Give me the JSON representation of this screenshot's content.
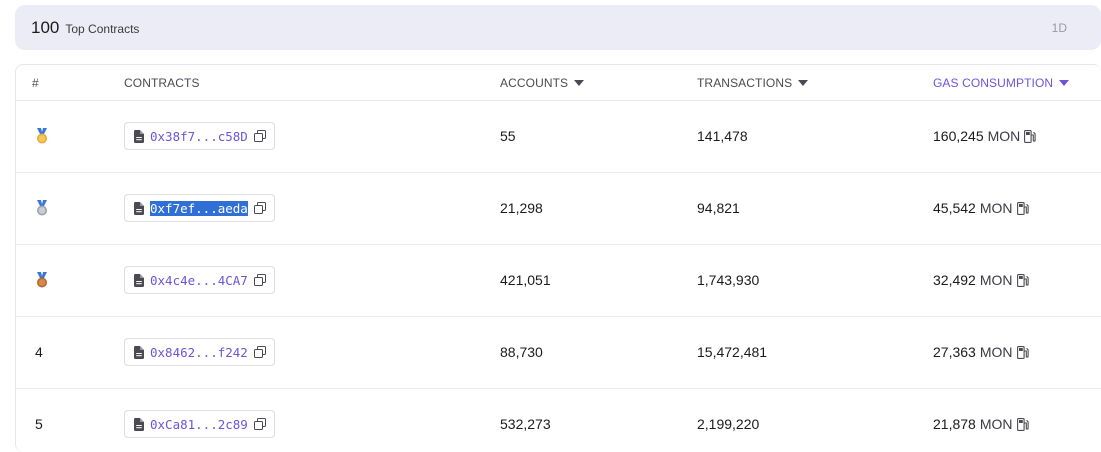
{
  "header": {
    "count": "100",
    "label": "Top Contracts",
    "timeframe": "1D"
  },
  "columns": {
    "rank": "#",
    "contracts": "CONTRACTS",
    "accounts": "ACCOUNTS",
    "transactions": "TRANSACTIONS",
    "gas": "GAS CONSUMPTION"
  },
  "accent_color": "#6e54d8",
  "rows": [
    {
      "rank": "1",
      "medal": "gold-medal-icon",
      "address": "0x38f7...c58D",
      "accounts": "55",
      "transactions": "141,478",
      "gas": "160,245",
      "unit": "MON"
    },
    {
      "rank": "2",
      "medal": "silver-medal-icon",
      "address": "0xf7ef...aeda",
      "accounts": "21,298",
      "transactions": "94,821",
      "gas": "45,542",
      "unit": "MON",
      "selected": true
    },
    {
      "rank": "3",
      "medal": "bronze-medal-icon",
      "address": "0x4c4e...4CA7",
      "accounts": "421,051",
      "transactions": "1,743,930",
      "gas": "32,492",
      "unit": "MON"
    },
    {
      "rank": "4",
      "address": "0x8462...f242",
      "accounts": "88,730",
      "transactions": "15,472,481",
      "gas": "27,363",
      "unit": "MON"
    },
    {
      "rank": "5",
      "address": "0xCa81...2c89",
      "accounts": "532,273",
      "transactions": "2,199,220",
      "gas": "21,878",
      "unit": "MON"
    }
  ]
}
